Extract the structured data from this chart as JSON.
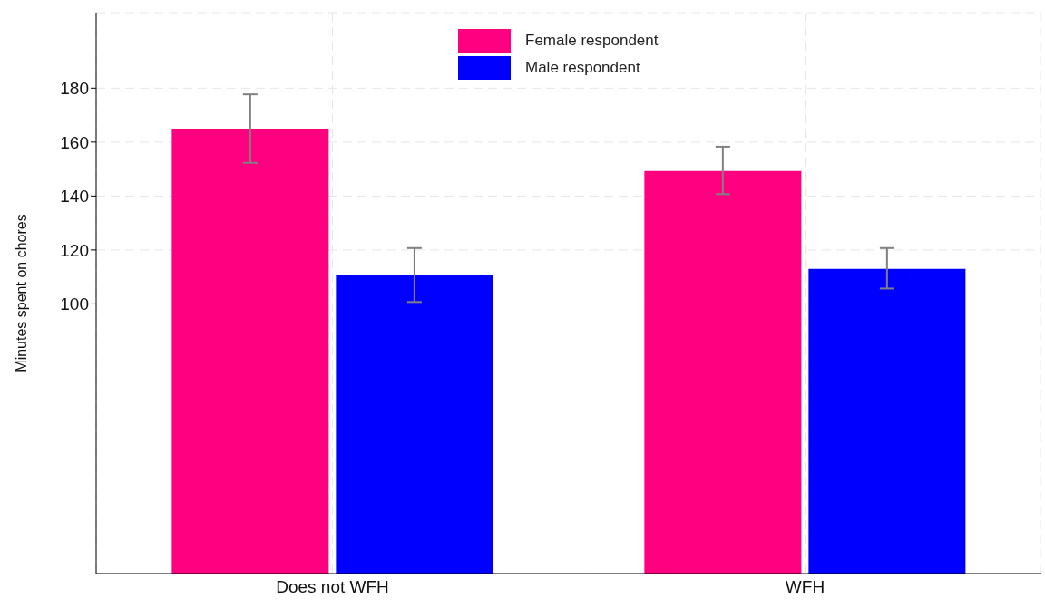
{
  "chart_data": {
    "type": "bar",
    "ylabel": "Minutes spent on chores",
    "categories": [
      "Does not WFH",
      "WFH"
    ],
    "series": [
      {
        "name": "Female respondent",
        "color": "#ff0080",
        "values": [
          165,
          149.3
        ],
        "errors": [
          [
            152.3,
            177.7
          ],
          [
            140.7,
            158.3
          ]
        ]
      },
      {
        "name": "Male respondent",
        "color": "#0000ff",
        "values": [
          110.7,
          113
        ],
        "errors": [
          [
            100.7,
            120.7
          ],
          [
            105.7,
            120.7
          ]
        ]
      }
    ],
    "ylim": [
      0,
      208
    ],
    "yticks": [
      100,
      120,
      140,
      160,
      180
    ],
    "grid": true,
    "legend": "top"
  }
}
